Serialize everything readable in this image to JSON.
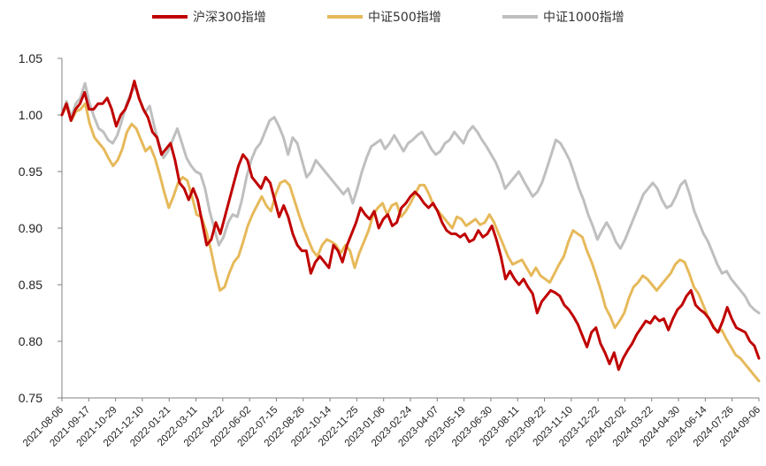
{
  "chart_data": {
    "type": "line",
    "title": "",
    "xlabel": "",
    "ylabel": "",
    "ylim": [
      0.75,
      1.05
    ],
    "yticks": [
      "0.75",
      "0.80",
      "0.85",
      "0.90",
      "0.95",
      "1.00",
      "1.05"
    ],
    "grid": false,
    "legend": "top",
    "x_tick_labels": [
      "2021-08-06",
      "2021-09-17",
      "2021-10-29",
      "2021-12-10",
      "2022-01-21",
      "2022-03-11",
      "2022-04-22",
      "2022-06-02",
      "2022-07-15",
      "2022-08-26",
      "2022-10-14",
      "2022-11-25",
      "2023-01-06",
      "2023-02-24",
      "2023-04-07",
      "2023-05-19",
      "2023-06-30",
      "2023-08-11",
      "2023-09-22",
      "2023-11-10",
      "2023-12-22",
      "2024-02-02",
      "2024-03-22",
      "2024-04-30",
      "2024-06-14",
      "2024-07-26",
      "2024-09-06"
    ],
    "series": [
      {
        "name": "沪深300指增",
        "color": "#C00000",
        "values": [
          1.0,
          1.01,
          0.995,
          1.005,
          1.01,
          1.02,
          1.005,
          1.005,
          1.01,
          1.01,
          1.015,
          1.005,
          0.99,
          1.0,
          1.005,
          1.015,
          1.03,
          1.015,
          1.005,
          0.998,
          0.985,
          0.98,
          0.965,
          0.97,
          0.975,
          0.96,
          0.94,
          0.935,
          0.925,
          0.935,
          0.925,
          0.905,
          0.885,
          0.89,
          0.905,
          0.895,
          0.91,
          0.925,
          0.94,
          0.955,
          0.965,
          0.96,
          0.945,
          0.94,
          0.935,
          0.945,
          0.94,
          0.925,
          0.91,
          0.92,
          0.91,
          0.895,
          0.885,
          0.88,
          0.88,
          0.86,
          0.87,
          0.875,
          0.87,
          0.865,
          0.885,
          0.88,
          0.87,
          0.885,
          0.895,
          0.905,
          0.918,
          0.912,
          0.908,
          0.915,
          0.9,
          0.908,
          0.912,
          0.902,
          0.905,
          0.918,
          0.922,
          0.928,
          0.932,
          0.928,
          0.922,
          0.918,
          0.922,
          0.915,
          0.905,
          0.898,
          0.895,
          0.895,
          0.892,
          0.895,
          0.888,
          0.89,
          0.898,
          0.892,
          0.895,
          0.902,
          0.89,
          0.875,
          0.855,
          0.862,
          0.855,
          0.85,
          0.855,
          0.848,
          0.842,
          0.825,
          0.835,
          0.84,
          0.845,
          0.843,
          0.84,
          0.832,
          0.828,
          0.822,
          0.815,
          0.805,
          0.795,
          0.808,
          0.812,
          0.798,
          0.79,
          0.78,
          0.79,
          0.775,
          0.785,
          0.792,
          0.798,
          0.806,
          0.812,
          0.818,
          0.816,
          0.822,
          0.818,
          0.82,
          0.81,
          0.82,
          0.828,
          0.832,
          0.84,
          0.845,
          0.832,
          0.828,
          0.825,
          0.82,
          0.812,
          0.808,
          0.818,
          0.83,
          0.82,
          0.812,
          0.81,
          0.808,
          0.8,
          0.796,
          0.785
        ]
      },
      {
        "name": "中证500指增",
        "color": "#E6B95A",
        "values": [
          1.0,
          1.008,
          0.995,
          1.003,
          1.005,
          1.01,
          0.992,
          0.98,
          0.975,
          0.97,
          0.962,
          0.955,
          0.96,
          0.97,
          0.985,
          0.992,
          0.988,
          0.978,
          0.968,
          0.972,
          0.962,
          0.948,
          0.932,
          0.918,
          0.928,
          0.94,
          0.945,
          0.942,
          0.928,
          0.912,
          0.91,
          0.898,
          0.882,
          0.862,
          0.845,
          0.848,
          0.86,
          0.87,
          0.875,
          0.888,
          0.902,
          0.912,
          0.92,
          0.928,
          0.92,
          0.915,
          0.93,
          0.94,
          0.942,
          0.938,
          0.925,
          0.912,
          0.9,
          0.89,
          0.88,
          0.875,
          0.885,
          0.89,
          0.888,
          0.885,
          0.878,
          0.885,
          0.88,
          0.865,
          0.878,
          0.888,
          0.898,
          0.912,
          0.918,
          0.922,
          0.912,
          0.92,
          0.922,
          0.91,
          0.915,
          0.922,
          0.93,
          0.938,
          0.938,
          0.93,
          0.92,
          0.915,
          0.91,
          0.905,
          0.9,
          0.91,
          0.908,
          0.902,
          0.905,
          0.908,
          0.903,
          0.905,
          0.912,
          0.905,
          0.895,
          0.885,
          0.875,
          0.868,
          0.87,
          0.872,
          0.865,
          0.858,
          0.865,
          0.858,
          0.855,
          0.852,
          0.86,
          0.868,
          0.875,
          0.888,
          0.898,
          0.895,
          0.892,
          0.88,
          0.87,
          0.858,
          0.845,
          0.83,
          0.822,
          0.812,
          0.818,
          0.825,
          0.838,
          0.848,
          0.852,
          0.858,
          0.855,
          0.85,
          0.845,
          0.85,
          0.855,
          0.86,
          0.868,
          0.872,
          0.87,
          0.86,
          0.848,
          0.842,
          0.832,
          0.822,
          0.815,
          0.808,
          0.81,
          0.802,
          0.795,
          0.788,
          0.785,
          0.78,
          0.775,
          0.77,
          0.765
        ]
      },
      {
        "name": "中证1000指增",
        "color": "#BFBFBF",
        "values": [
          1.0,
          1.012,
          0.998,
          1.01,
          1.015,
          1.028,
          1.01,
          0.998,
          0.988,
          0.985,
          0.978,
          0.975,
          0.982,
          0.995,
          1.01,
          1.02,
          1.025,
          1.012,
          1.002,
          1.008,
          0.99,
          0.975,
          0.962,
          0.968,
          0.978,
          0.988,
          0.975,
          0.962,
          0.955,
          0.95,
          0.948,
          0.935,
          0.915,
          0.9,
          0.885,
          0.892,
          0.905,
          0.912,
          0.91,
          0.925,
          0.945,
          0.96,
          0.97,
          0.975,
          0.985,
          0.995,
          0.998,
          0.99,
          0.98,
          0.965,
          0.98,
          0.975,
          0.96,
          0.945,
          0.95,
          0.96,
          0.955,
          0.95,
          0.945,
          0.94,
          0.935,
          0.93,
          0.935,
          0.922,
          0.935,
          0.95,
          0.962,
          0.972,
          0.975,
          0.978,
          0.97,
          0.975,
          0.982,
          0.975,
          0.968,
          0.975,
          0.978,
          0.982,
          0.985,
          0.978,
          0.97,
          0.965,
          0.968,
          0.975,
          0.978,
          0.985,
          0.98,
          0.975,
          0.985,
          0.99,
          0.985,
          0.978,
          0.972,
          0.965,
          0.958,
          0.948,
          0.935,
          0.94,
          0.945,
          0.95,
          0.942,
          0.935,
          0.928,
          0.932,
          0.94,
          0.952,
          0.965,
          0.978,
          0.975,
          0.968,
          0.96,
          0.948,
          0.935,
          0.925,
          0.912,
          0.902,
          0.89,
          0.898,
          0.905,
          0.898,
          0.888,
          0.882,
          0.89,
          0.9,
          0.91,
          0.92,
          0.93,
          0.935,
          0.94,
          0.935,
          0.925,
          0.918,
          0.92,
          0.928,
          0.938,
          0.942,
          0.93,
          0.915,
          0.905,
          0.895,
          0.888,
          0.878,
          0.868,
          0.86,
          0.862,
          0.855,
          0.85,
          0.845,
          0.84,
          0.832,
          0.828,
          0.825
        ]
      }
    ]
  }
}
